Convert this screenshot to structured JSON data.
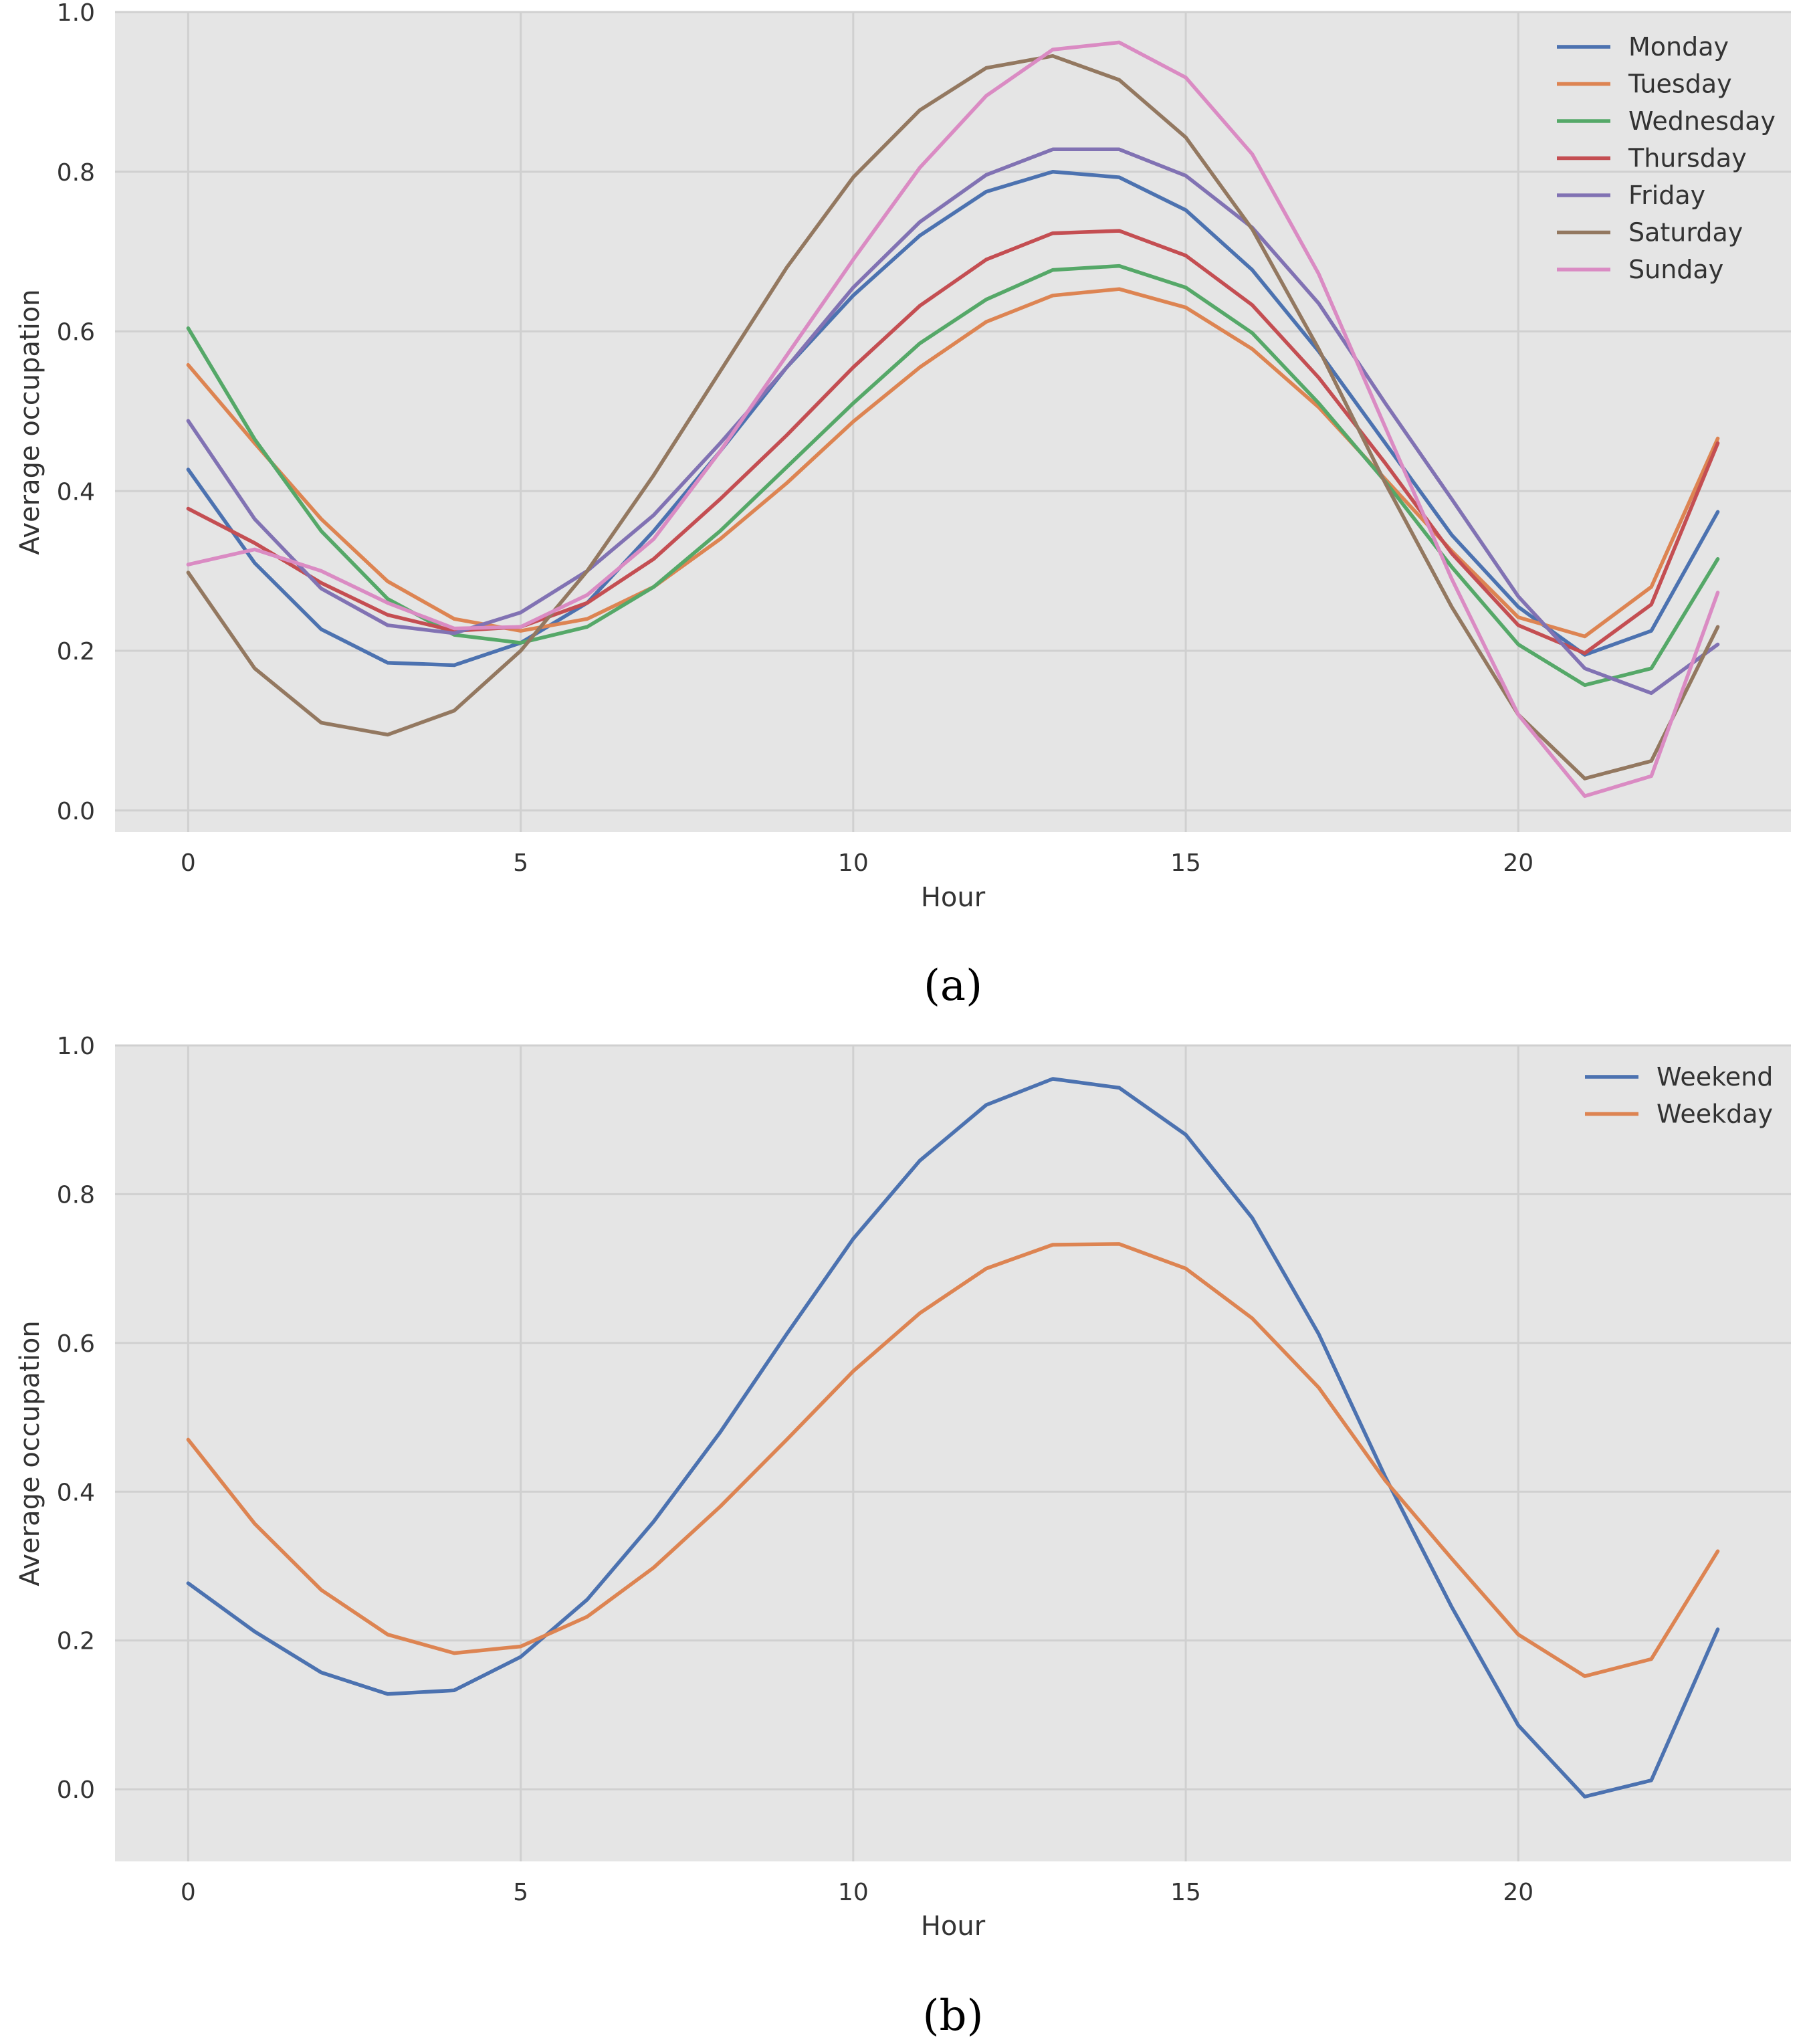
{
  "chart_data": [
    {
      "type": "line",
      "caption": "(a)",
      "xlabel": "Hour",
      "ylabel": "Average occupation",
      "xlim": [
        -1.1,
        24.1
      ],
      "ylim": [
        -0.027,
        1.0
      ],
      "xticks": [
        0,
        5,
        10,
        15,
        20
      ],
      "xtick_labels": [
        "0",
        "5",
        "10",
        "15",
        "20"
      ],
      "yticks": [
        0.0,
        0.2,
        0.4,
        0.6,
        0.8,
        1.0
      ],
      "ytick_labels": [
        "0.0",
        "0.2",
        "0.4",
        "0.6",
        "0.8",
        "1.0"
      ],
      "legend_position": "top-right",
      "x": [
        0,
        1,
        2,
        3,
        4,
        5,
        6,
        7,
        8,
        9,
        10,
        11,
        12,
        13,
        14,
        15,
        16,
        17,
        18,
        19,
        20,
        21,
        22,
        23
      ],
      "series": [
        {
          "name": "Monday",
          "color": "#4c72b0",
          "values": [
            0.427,
            0.31,
            0.227,
            0.185,
            0.182,
            0.21,
            0.26,
            0.35,
            0.45,
            0.555,
            0.645,
            0.72,
            0.775,
            0.8,
            0.793,
            0.752,
            0.677,
            0.575,
            0.46,
            0.345,
            0.255,
            0.195,
            0.225,
            0.374
          ]
        },
        {
          "name": "Tuesday",
          "color": "#dd8452",
          "values": [
            0.558,
            0.46,
            0.365,
            0.287,
            0.24,
            0.225,
            0.24,
            0.28,
            0.34,
            0.41,
            0.487,
            0.555,
            0.612,
            0.645,
            0.653,
            0.63,
            0.578,
            0.505,
            0.415,
            0.325,
            0.242,
            0.218,
            0.28,
            0.466
          ]
        },
        {
          "name": "Wednesday",
          "color": "#55a868",
          "values": [
            0.604,
            0.465,
            0.35,
            0.265,
            0.22,
            0.21,
            0.23,
            0.28,
            0.35,
            0.43,
            0.51,
            0.585,
            0.64,
            0.677,
            0.682,
            0.655,
            0.598,
            0.51,
            0.412,
            0.305,
            0.208,
            0.157,
            0.178,
            0.315
          ]
        },
        {
          "name": "Thursday",
          "color": "#c44e52",
          "values": [
            0.378,
            0.335,
            0.285,
            0.245,
            0.225,
            0.23,
            0.26,
            0.315,
            0.39,
            0.47,
            0.555,
            0.632,
            0.69,
            0.723,
            0.726,
            0.695,
            0.633,
            0.542,
            0.435,
            0.322,
            0.232,
            0.197,
            0.258,
            0.46
          ]
        },
        {
          "name": "Friday",
          "color": "#8172b3",
          "values": [
            0.488,
            0.365,
            0.278,
            0.232,
            0.222,
            0.248,
            0.3,
            0.37,
            0.46,
            0.555,
            0.655,
            0.737,
            0.796,
            0.828,
            0.828,
            0.795,
            0.73,
            0.635,
            0.51,
            0.39,
            0.268,
            0.178,
            0.147,
            0.208
          ]
        },
        {
          "name": "Saturday",
          "color": "#937860",
          "values": [
            0.298,
            0.178,
            0.11,
            0.095,
            0.125,
            0.2,
            0.3,
            0.42,
            0.55,
            0.68,
            0.793,
            0.877,
            0.93,
            0.945,
            0.915,
            0.843,
            0.728,
            0.578,
            0.41,
            0.255,
            0.12,
            0.04,
            0.062,
            0.23
          ]
        },
        {
          "name": "Sunday",
          "color": "#da8bc3",
          "values": [
            0.308,
            0.327,
            0.3,
            0.26,
            0.228,
            0.23,
            0.27,
            0.34,
            0.45,
            0.57,
            0.69,
            0.805,
            0.895,
            0.953,
            0.962,
            0.918,
            0.822,
            0.672,
            0.48,
            0.29,
            0.12,
            0.018,
            0.043,
            0.273
          ]
        }
      ]
    },
    {
      "type": "line",
      "caption": "(b)",
      "xlabel": "Hour",
      "ylabel": "Average occupation",
      "xlim": [
        -1.1,
        24.1
      ],
      "ylim": [
        -0.097,
        1.0
      ],
      "xticks": [
        0,
        5,
        10,
        15,
        20
      ],
      "xtick_labels": [
        "0",
        "5",
        "10",
        "15",
        "20"
      ],
      "yticks": [
        0.0,
        0.2,
        0.4,
        0.6,
        0.8,
        1.0
      ],
      "ytick_labels": [
        "0.0",
        "0.2",
        "0.4",
        "0.6",
        "0.8",
        "1.0"
      ],
      "legend_position": "top-right",
      "x": [
        0,
        1,
        2,
        3,
        4,
        5,
        6,
        7,
        8,
        9,
        10,
        11,
        12,
        13,
        14,
        15,
        16,
        17,
        18,
        19,
        20,
        21,
        22,
        23
      ],
      "series": [
        {
          "name": "Weekend",
          "color": "#4c72b0",
          "values": [
            0.277,
            0.212,
            0.157,
            0.128,
            0.133,
            0.178,
            0.255,
            0.36,
            0.48,
            0.612,
            0.74,
            0.845,
            0.92,
            0.955,
            0.943,
            0.88,
            0.768,
            0.612,
            0.42,
            0.245,
            0.086,
            -0.01,
            0.012,
            0.215
          ]
        },
        {
          "name": "Weekday",
          "color": "#dd8452",
          "values": [
            0.47,
            0.357,
            0.268,
            0.208,
            0.183,
            0.192,
            0.232,
            0.298,
            0.38,
            0.47,
            0.562,
            0.64,
            0.7,
            0.732,
            0.733,
            0.7,
            0.633,
            0.54,
            0.415,
            0.31,
            0.208,
            0.152,
            0.175,
            0.32
          ]
        }
      ]
    }
  ]
}
